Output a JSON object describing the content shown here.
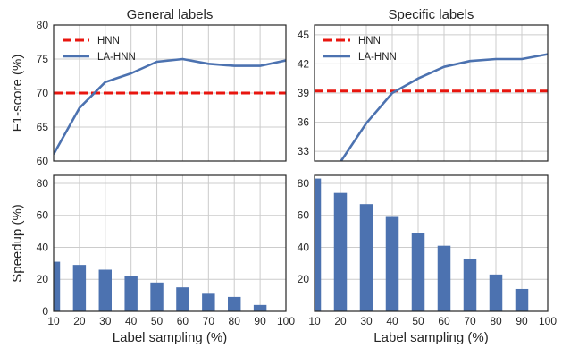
{
  "colors": {
    "baseline": "#e8160f",
    "series": "#4c72b0",
    "grid": "#cccccc",
    "frame": "#262626"
  },
  "chart_data": [
    {
      "id": "f1-general",
      "type": "line",
      "title": "General labels",
      "xlabel": "",
      "ylabel": "F1-score (%)",
      "xlim": [
        10,
        100
      ],
      "ylim": [
        60,
        80
      ],
      "xticks": [
        10,
        20,
        30,
        40,
        50,
        60,
        70,
        80,
        90,
        100
      ],
      "yticks": [
        60,
        65,
        70,
        75,
        80
      ],
      "show_xtick_labels": false,
      "grid": true,
      "legend": "top-left",
      "series": [
        {
          "name": "HNN",
          "style": "dashed",
          "color": "#e8160f",
          "x": [
            10,
            100
          ],
          "y": [
            70.0,
            70.0
          ]
        },
        {
          "name": "LA-HNN",
          "style": "solid",
          "color": "#4c72b0",
          "x": [
            10,
            20,
            30,
            40,
            50,
            60,
            70,
            80,
            90,
            100
          ],
          "y": [
            61.0,
            67.8,
            71.6,
            72.9,
            74.6,
            75.0,
            74.3,
            74.0,
            74.0,
            74.8
          ]
        }
      ]
    },
    {
      "id": "f1-specific",
      "type": "line",
      "title": "Specific labels",
      "xlabel": "",
      "ylabel": "",
      "xlim": [
        10,
        100
      ],
      "ylim": [
        32,
        46
      ],
      "xticks": [
        10,
        20,
        30,
        40,
        50,
        60,
        70,
        80,
        90,
        100
      ],
      "yticks": [
        33,
        36,
        39,
        42,
        45
      ],
      "show_xtick_labels": false,
      "grid": true,
      "legend": "top-left",
      "series": [
        {
          "name": "HNN",
          "style": "dashed",
          "color": "#e8160f",
          "x": [
            10,
            100
          ],
          "y": [
            39.2,
            39.2
          ]
        },
        {
          "name": "LA-HNN",
          "style": "solid",
          "color": "#4c72b0",
          "x": [
            20,
            30,
            40,
            50,
            60,
            70,
            80,
            90,
            100
          ],
          "y": [
            31.9,
            35.9,
            39.0,
            40.5,
            41.7,
            42.3,
            42.5,
            42.5,
            43.0
          ]
        }
      ]
    },
    {
      "id": "speedup-general",
      "type": "bar",
      "title": "",
      "xlabel": "Label sampling (%)",
      "ylabel": "Speedup (%)",
      "xlim": [
        10,
        100
      ],
      "ylim": [
        0,
        85
      ],
      "xticks": [
        10,
        20,
        30,
        40,
        50,
        60,
        70,
        80,
        90,
        100
      ],
      "yticks": [
        0,
        20,
        40,
        60,
        80
      ],
      "bar_width": 5,
      "grid": true,
      "color": "#4c72b0",
      "x": [
        10,
        20,
        30,
        40,
        50,
        60,
        70,
        80,
        90
      ],
      "values": [
        31,
        29,
        26,
        22,
        18,
        15,
        11,
        9,
        4
      ]
    },
    {
      "id": "speedup-specific",
      "type": "bar",
      "title": "",
      "xlabel": "Label sampling (%)",
      "ylabel": "",
      "xlim": [
        10,
        100
      ],
      "ylim": [
        0,
        85
      ],
      "xticks": [
        10,
        20,
        30,
        40,
        50,
        60,
        70,
        80,
        90,
        100
      ],
      "yticks": [
        20,
        40,
        60,
        80
      ],
      "bar_width": 5,
      "grid": true,
      "color": "#4c72b0",
      "x": [
        10,
        20,
        30,
        40,
        50,
        60,
        70,
        80,
        90
      ],
      "values": [
        83,
        74,
        67,
        59,
        49,
        41,
        33,
        23,
        14
      ]
    }
  ]
}
